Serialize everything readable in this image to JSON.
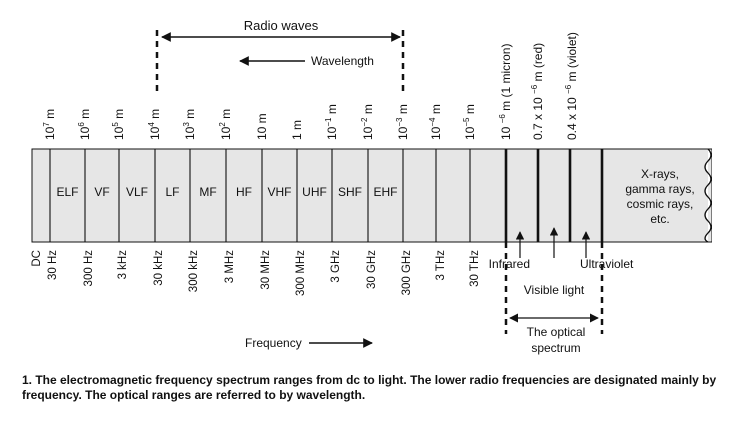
{
  "radio_waves_label": "Radio waves",
  "wavelength_label": "Wavelength",
  "frequency_label": "Frequency",
  "wavelength_ticks": [
    {
      "base": "10",
      "exp": "7",
      "unit": "m"
    },
    {
      "base": "10",
      "exp": "6",
      "unit": "m"
    },
    {
      "base": "10",
      "exp": "5",
      "unit": "m"
    },
    {
      "base": "10",
      "exp": "4",
      "unit": "m"
    },
    {
      "base": "10",
      "exp": "3",
      "unit": "m"
    },
    {
      "base": "10",
      "exp": "2",
      "unit": "m"
    },
    {
      "base": "10 m",
      "exp": "",
      "unit": ""
    },
    {
      "base": "1 m",
      "exp": "",
      "unit": ""
    },
    {
      "base": "10",
      "exp": "−1",
      "unit": "m"
    },
    {
      "base": "10",
      "exp": "−2",
      "unit": "m"
    },
    {
      "base": "10",
      "exp": "−3",
      "unit": "m"
    },
    {
      "base": "10",
      "exp": "−4",
      "unit": "m"
    },
    {
      "base": "10",
      "exp": "−5",
      "unit": "m"
    }
  ],
  "optical_wavelengths": [
    {
      "pre": "10",
      "exp": "−6",
      "post": "m (1 micron)"
    },
    {
      "pre": "0.7 x 10",
      "exp": "−6",
      "post": "m (red)"
    },
    {
      "pre": "0.4 x 10",
      "exp": "−6",
      "post": "m (violet)"
    }
  ],
  "bands": [
    "ELF",
    "VF",
    "VLF",
    "LF",
    "MF",
    "HF",
    "VHF",
    "UHF",
    "SHF",
    "EHF"
  ],
  "high_energy_lines": [
    "X-rays,",
    "gamma rays,",
    "cosmic rays,",
    "etc."
  ],
  "frequency_ticks": [
    "DC",
    "30 Hz",
    "300 Hz",
    "3 kHz",
    "30 kHz",
    "300 kHz",
    "3 MHz",
    "30 MHz",
    "300 MHz",
    "3 GHz",
    "30 GHz",
    "300 GHz",
    "3 THz",
    "30 THz"
  ],
  "optical": {
    "infrared": "Infrared",
    "ultraviolet": "Ultraviolet",
    "visible": "Visible light",
    "optical_spectrum_line1": "The optical",
    "optical_spectrum_line2": "spectrum"
  },
  "caption": "1. The electromagnetic frequency spectrum ranges from dc to light. The lower radio frequencies are designated mainly by frequency. The optical ranges are referred to by wavelength.",
  "colors": {
    "band_fill": "#e6e6e6",
    "line": "#111111"
  }
}
